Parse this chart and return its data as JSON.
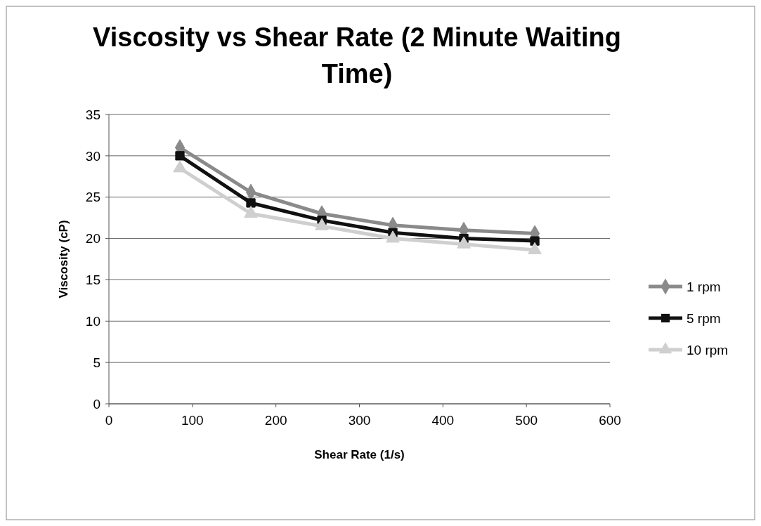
{
  "chart_data": {
    "type": "line",
    "title": "Viscosity vs Shear Rate (2 Minute Waiting Time)",
    "xlabel": "Shear Rate (1/s)",
    "ylabel": "Viscosity (cP)",
    "x": [
      85,
      170,
      255,
      340,
      425,
      510
    ],
    "series": [
      {
        "name": "1 rpm",
        "color": "#8a8a8a",
        "marker": "diamond",
        "values": [
          31,
          25.6,
          23,
          21.6,
          21,
          20.6
        ]
      },
      {
        "name": "5 rpm",
        "color": "#111111",
        "marker": "square",
        "values": [
          30,
          24.3,
          22.2,
          20.7,
          20,
          19.7
        ]
      },
      {
        "name": "10 rpm",
        "color": "#cfcfcf",
        "marker": "triangle",
        "values": [
          28.5,
          23,
          21.5,
          20,
          19.3,
          18.6
        ]
      }
    ],
    "xlim": [
      0,
      600
    ],
    "xticks": [
      0,
      100,
      200,
      300,
      400,
      500,
      600
    ],
    "ylim": [
      0,
      35
    ],
    "yticks": [
      0,
      5,
      10,
      15,
      20,
      25,
      30,
      35
    ],
    "grid": "y",
    "legend": "right"
  }
}
